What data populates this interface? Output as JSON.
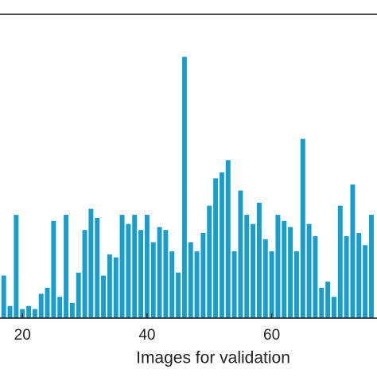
{
  "chart_data": {
    "type": "bar",
    "x_label": "Images for validation",
    "x": [
      17,
      18,
      19,
      20,
      21,
      22,
      23,
      24,
      25,
      26,
      27,
      28,
      29,
      30,
      31,
      32,
      33,
      34,
      35,
      36,
      37,
      38,
      39,
      40,
      41,
      42,
      43,
      44,
      45,
      46,
      47,
      48,
      49,
      50,
      51,
      52,
      53,
      54,
      55,
      56,
      57,
      58,
      59,
      60,
      61,
      62,
      63,
      64,
      65,
      66,
      67,
      68,
      69,
      70,
      71,
      72,
      73,
      74,
      75,
      76
    ],
    "values": [
      14,
      4,
      34,
      3,
      4,
      3,
      8,
      10,
      32,
      7,
      34,
      5,
      15,
      29,
      36,
      33,
      14,
      21,
      20,
      34,
      31,
      34,
      29,
      34,
      25,
      30,
      29,
      22,
      15,
      86,
      25,
      22,
      28,
      37,
      46,
      48,
      52,
      22,
      42,
      34,
      31,
      38,
      26,
      22,
      34,
      32,
      30,
      22,
      59,
      31,
      27,
      10,
      12,
      7,
      37,
      27,
      44,
      28,
      24,
      34
    ],
    "color": "#1a9ec9",
    "xlim": [
      16.4,
      76.9
    ],
    "xticks": [
      20,
      40,
      60
    ],
    "ylim": [
      0,
      100
    ]
  }
}
